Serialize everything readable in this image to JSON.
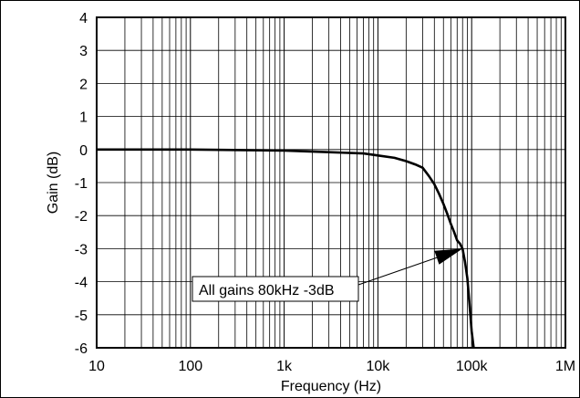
{
  "chart_data": {
    "type": "line",
    "xlabel": "Frequency (Hz)",
    "ylabel": "Gain (dB)",
    "x_scale": "log",
    "xlim": [
      10,
      1000000
    ],
    "ylim": [
      -6,
      4
    ],
    "grid": true,
    "x_ticks": [
      {
        "value": 10,
        "label": "10"
      },
      {
        "value": 100,
        "label": "100"
      },
      {
        "value": 1000,
        "label": "1k"
      },
      {
        "value": 10000,
        "label": "10k"
      },
      {
        "value": 100000,
        "label": "100k"
      },
      {
        "value": 1000000,
        "label": "1M"
      }
    ],
    "y_ticks": [
      {
        "value": 4,
        "label": "4"
      },
      {
        "value": 3,
        "label": "3"
      },
      {
        "value": 2,
        "label": "2"
      },
      {
        "value": 1,
        "label": "1"
      },
      {
        "value": 0,
        "label": "0"
      },
      {
        "value": -1,
        "label": "-1"
      },
      {
        "value": -2,
        "label": "-2"
      },
      {
        "value": -3,
        "label": "-3"
      },
      {
        "value": -4,
        "label": "-4"
      },
      {
        "value": -5,
        "label": "-5"
      },
      {
        "value": -6,
        "label": "-6"
      }
    ],
    "series": [
      {
        "x": [
          10,
          100,
          1000,
          3000,
          7000,
          10000,
          15000,
          20000,
          25000,
          30000,
          35000,
          40000,
          45000,
          50000,
          55000,
          60000,
          65000,
          70000,
          75000,
          80000,
          85000,
          90000,
          95000,
          100000,
          105000
        ],
        "y": [
          0,
          0,
          -0.03,
          -0.08,
          -0.12,
          -0.18,
          -0.25,
          -0.35,
          -0.45,
          -0.55,
          -0.8,
          -1.05,
          -1.35,
          -1.65,
          -1.95,
          -2.25,
          -2.5,
          -2.75,
          -2.85,
          -3.0,
          -3.4,
          -3.9,
          -4.7,
          -5.5,
          -6.0
        ]
      }
    ],
    "annotations": [
      {
        "text": "All gains 80kHz -3dB",
        "points_to": {
          "x": 80000,
          "y": -3
        }
      }
    ]
  }
}
